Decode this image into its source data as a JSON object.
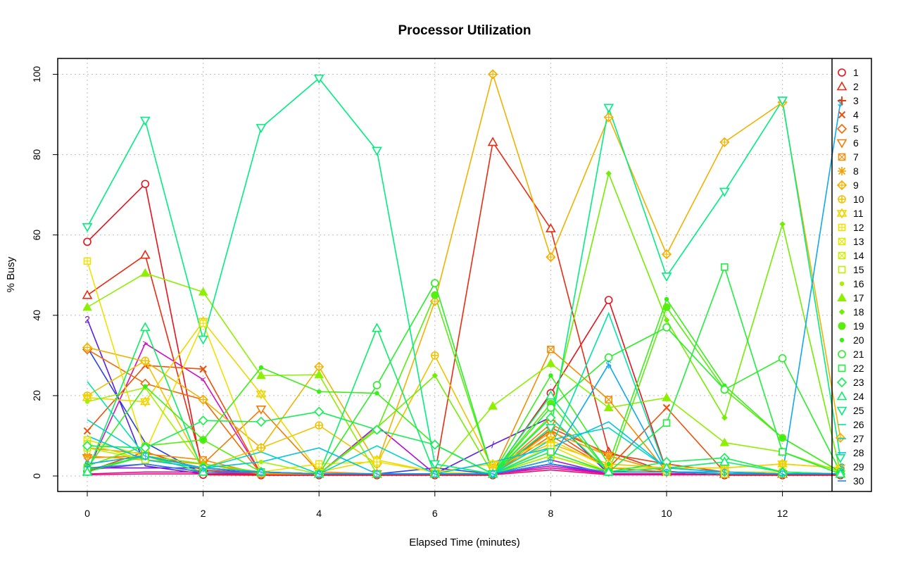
{
  "chart_data": {
    "type": "line",
    "title": "Processor Utilization",
    "xlabel": "Elapsed Time (minutes)",
    "ylabel": "% Busy",
    "xlim": [
      0,
      13
    ],
    "ylim": [
      0,
      100
    ],
    "x_ticks": [
      0,
      2,
      4,
      6,
      8,
      10,
      12
    ],
    "y_ticks": [
      0,
      20,
      40,
      60,
      80,
      100
    ],
    "grid": true,
    "legend_position": "right",
    "x": [
      0,
      1,
      2,
      3,
      4,
      5,
      6,
      7,
      8,
      9,
      10,
      11,
      12,
      13
    ],
    "series": [
      {
        "name": "1",
        "color": "#e8111b",
        "marker": "circle",
        "values": [
          58.3,
          72.7,
          0.3,
          0.2,
          0.2,
          0.2,
          0.2,
          0.2,
          20.6,
          43.8,
          1.2,
          0.2,
          0.2,
          0.2
        ]
      },
      {
        "name": "2",
        "color": "#ec2a10",
        "marker": "triangle",
        "values": [
          45.0,
          55.0,
          2.0,
          1.0,
          0.5,
          0.5,
          0.5,
          83.1,
          61.6,
          6.0,
          1.0,
          0.5,
          0.5,
          0.5
        ]
      },
      {
        "name": "3",
        "color": "#ee3d0c",
        "marker": "plus",
        "values": [
          1.2,
          6.0,
          1.5,
          0.5,
          0.5,
          0.5,
          0.5,
          0.5,
          12.0,
          5.5,
          3.0,
          1.0,
          0.5,
          0.5
        ]
      },
      {
        "name": "4",
        "color": "#f04f0a",
        "marker": "x",
        "values": [
          11.2,
          27.5,
          26.6,
          0.5,
          0.5,
          0.5,
          0.5,
          0.5,
          11.5,
          2.0,
          17.0,
          1.0,
          0.5,
          0.5
        ]
      },
      {
        "name": "5",
        "color": "#f26a08",
        "marker": "diamond",
        "values": [
          31.5,
          23.0,
          19.0,
          0.5,
          0.5,
          0.5,
          0.5,
          0.5,
          10.0,
          2.0,
          1.0,
          0.5,
          0.5,
          0.5
        ]
      },
      {
        "name": "6",
        "color": "#f47c06",
        "marker": "triangle-down",
        "values": [
          4.5,
          5.0,
          3.0,
          16.6,
          1.0,
          0.5,
          0.5,
          0.5,
          13.0,
          5.0,
          1.0,
          0.5,
          0.5,
          0.5
        ]
      },
      {
        "name": "7",
        "color": "#f58d04",
        "marker": "square-x",
        "values": [
          7.0,
          5.5,
          4.0,
          0.5,
          0.5,
          0.5,
          0.5,
          0.5,
          31.5,
          19.0,
          1.0,
          0.5,
          0.5,
          0.5
        ]
      },
      {
        "name": "8",
        "color": "#f5a002",
        "marker": "star",
        "values": [
          5.0,
          4.0,
          3.0,
          0.5,
          0.5,
          0.5,
          0.5,
          0.5,
          11.0,
          5.0,
          1.0,
          0.5,
          0.5,
          0.5
        ]
      },
      {
        "name": "9",
        "color": "#f2b100",
        "marker": "diamond-plus",
        "values": [
          32.0,
          28.5,
          19.0,
          7.0,
          27.2,
          3.0,
          43.5,
          100.0,
          54.5,
          89.3,
          55.2,
          83.1,
          93.0,
          9.5
        ]
      },
      {
        "name": "10",
        "color": "#f1c200",
        "marker": "circle-plus",
        "values": [
          20.0,
          28.7,
          2.0,
          7.0,
          12.6,
          3.0,
          30.0,
          2.0,
          8.0,
          3.0,
          2.0,
          2.0,
          3.0,
          2.0
        ]
      },
      {
        "name": "11",
        "color": "#efd600",
        "marker": "hexagram",
        "values": [
          19.5,
          18.5,
          38.5,
          20.4,
          1.0,
          4.0,
          1.0,
          3.0,
          9.0,
          2.0,
          2.0,
          2.0,
          3.0,
          2.0
        ]
      },
      {
        "name": "12",
        "color": "#f0e100",
        "marker": "square-plus",
        "values": [
          53.5,
          6.0,
          38.0,
          1.0,
          3.0,
          3.5,
          1.0,
          0.5,
          7.5,
          1.0,
          1.0,
          1.0,
          1.0,
          0.5
        ]
      },
      {
        "name": "13",
        "color": "#e2e800",
        "marker": "square-x",
        "values": [
          9.0,
          5.0,
          2.0,
          1.0,
          0.5,
          0.5,
          0.5,
          0.5,
          6.0,
          1.0,
          1.0,
          0.5,
          0.5,
          0.5
        ]
      },
      {
        "name": "14",
        "color": "#cfec00",
        "marker": "square-x",
        "values": [
          8.0,
          4.0,
          2.0,
          1.0,
          0.5,
          0.5,
          0.5,
          0.5,
          5.0,
          1.0,
          1.0,
          0.5,
          0.5,
          0.5
        ]
      },
      {
        "name": "15",
        "color": "#b9f000",
        "marker": "square",
        "values": [
          7.0,
          4.0,
          2.0,
          1.0,
          0.5,
          0.5,
          0.5,
          0.5,
          5.0,
          1.0,
          1.0,
          0.5,
          0.5,
          0.5
        ]
      },
      {
        "name": "16",
        "color": "#a6f000",
        "marker": "dot",
        "values": [
          18.5,
          22.0,
          2.0,
          3.5,
          0.5,
          0.5,
          0.5,
          0.5,
          5.0,
          1.0,
          1.0,
          0.5,
          0.5,
          0.5
        ]
      },
      {
        "name": "17",
        "color": "#8cf000",
        "marker": "triangle-filled",
        "values": [
          42.0,
          50.5,
          45.8,
          25.0,
          25.2,
          0.5,
          0.5,
          17.4,
          28.0,
          17.0,
          19.5,
          8.3,
          6.0,
          1.0
        ]
      },
      {
        "name": "18",
        "color": "#72ee00",
        "marker": "diamond-small",
        "values": [
          3.0,
          5.0,
          3.0,
          1.0,
          0.5,
          12.0,
          25.0,
          0.5,
          15.0,
          75.3,
          38.8,
          14.5,
          62.7,
          1.0
        ]
      },
      {
        "name": "19",
        "color": "#57ee10",
        "marker": "circle-filled",
        "values": [
          2.5,
          7.5,
          9.0,
          1.0,
          0.5,
          11.5,
          45.0,
          0.5,
          18.0,
          1.0,
          42.0,
          21.5,
          9.5,
          1.0
        ]
      },
      {
        "name": "20",
        "color": "#3aef18",
        "marker": "dot",
        "values": [
          2.0,
          22.3,
          9.0,
          27.0,
          21.0,
          20.6,
          7.8,
          0.5,
          25.0,
          3.0,
          44.0,
          22.5,
          9.5,
          1.0
        ]
      },
      {
        "name": "21",
        "color": "#28ef28",
        "marker": "circle",
        "values": [
          1.0,
          5.0,
          2.0,
          1.0,
          0.5,
          22.6,
          48.0,
          0.5,
          17.0,
          29.5,
          37.0,
          21.5,
          29.3,
          1.0
        ]
      },
      {
        "name": "22",
        "color": "#1eef3c",
        "marker": "square",
        "values": [
          1.5,
          5.0,
          1.0,
          1.0,
          0.5,
          0.5,
          0.5,
          0.5,
          6.0,
          1.0,
          13.2,
          52.0,
          6.0,
          0.5
        ]
      },
      {
        "name": "23",
        "color": "#14ef53",
        "marker": "diamond",
        "values": [
          7.5,
          7.0,
          13.8,
          13.5,
          16.0,
          11.5,
          7.8,
          0.5,
          14.5,
          1.0,
          3.5,
          4.5,
          1.0,
          0.5
        ]
      },
      {
        "name": "24",
        "color": "#0aee6a",
        "marker": "triangle",
        "values": [
          1.0,
          37.0,
          1.0,
          1.0,
          0.5,
          36.8,
          0.5,
          0.5,
          20.0,
          1.0,
          2.0,
          3.5,
          1.0,
          0.5
        ]
      },
      {
        "name": "25",
        "color": "#00ed80",
        "marker": "triangle-down",
        "values": [
          62.0,
          88.5,
          34.0,
          86.7,
          99.0,
          81.0,
          3.0,
          0.5,
          12.0,
          91.7,
          49.7,
          70.8,
          93.5,
          4.5
        ]
      },
      {
        "name": "26",
        "color": "#00e4a5",
        "marker": "none",
        "values": [
          23.5,
          5.0,
          2.0,
          1.0,
          0.5,
          0.5,
          0.5,
          0.5,
          7.0,
          40.5,
          1.0,
          0.5,
          0.5,
          0.5
        ]
      },
      {
        "name": "27",
        "color": "#00d6c6",
        "marker": "none",
        "values": [
          14.0,
          5.0,
          2.0,
          6.0,
          0.5,
          7.5,
          0.5,
          0.5,
          9.0,
          12.0,
          2.0,
          1.0,
          0.5,
          0.5
        ]
      },
      {
        "name": "28",
        "color": "#00c4e2",
        "marker": "none",
        "values": [
          10.0,
          4.0,
          2.0,
          3.5,
          7.0,
          0.5,
          0.5,
          3.5,
          7.0,
          13.5,
          2.0,
          1.0,
          0.5,
          0.5
        ]
      },
      {
        "name": "29",
        "color": "#10a8ee",
        "marker": "dollar",
        "values": [
          3.0,
          5.0,
          2.0,
          1.0,
          0.5,
          0.5,
          0.5,
          0.5,
          4.0,
          27.8,
          1.0,
          1.0,
          0.5,
          93.0
        ]
      },
      {
        "name": "30",
        "color": "#1e86ee",
        "marker": "none",
        "values": [
          2.0,
          3.0,
          1.0,
          1.0,
          0.5,
          0.5,
          0.5,
          0.5,
          3.0,
          1.0,
          1.0,
          0.5,
          0.5,
          0.5
        ]
      }
    ],
    "extra_series": [
      {
        "color": "#2a43e4",
        "values": [
          32.0,
          8.3,
          0.5,
          0.5,
          0.5,
          0.5,
          2.0,
          0.5,
          3.0,
          0.5,
          0.5,
          0.5,
          0.5,
          0.5
        ]
      },
      {
        "color": "#5a1ee6",
        "values": [
          39.0,
          2.5,
          0.5,
          0.5,
          0.5,
          0.5,
          0.5,
          7.8,
          14.6,
          0.5,
          0.5,
          0.5,
          0.5,
          0.5
        ]
      },
      {
        "color": "#7e10e0",
        "values": [
          2.0,
          2.0,
          2.0,
          0.5,
          0.5,
          0.5,
          0.5,
          0.5,
          3.0,
          0.5,
          0.5,
          0.5,
          0.5,
          0.5
        ]
      },
      {
        "color": "#b010d6",
        "values": [
          1.5,
          3.0,
          1.0,
          0.5,
          0.5,
          12.5,
          0.5,
          0.5,
          4.0,
          0.5,
          0.5,
          0.5,
          0.5,
          0.5
        ]
      },
      {
        "color": "#d00fc4",
        "values": [
          1.0,
          33.0,
          24.0,
          0.5,
          0.5,
          0.5,
          0.5,
          0.5,
          2.5,
          0.5,
          0.5,
          0.5,
          0.5,
          0.5
        ]
      },
      {
        "color": "#e40a9a",
        "values": [
          0.5,
          1.0,
          1.0,
          0.5,
          0.5,
          0.5,
          0.5,
          0.5,
          2.0,
          0.5,
          0.5,
          0.5,
          0.5,
          0.5
        ]
      },
      {
        "color": "#ee0a70",
        "values": [
          0.3,
          0.5,
          0.5,
          0.3,
          0.3,
          0.3,
          0.3,
          0.3,
          1.5,
          0.3,
          0.3,
          0.3,
          0.3,
          0.3
        ]
      }
    ],
    "annotations": [
      {
        "text": "2",
        "x": 0,
        "y": 39.0,
        "color": "#7e10e0"
      },
      {
        "text": ">",
        "x": 1,
        "y": 33.0,
        "color": "#d00fc4"
      },
      {
        "text": "<",
        "x": 2,
        "y": 24.0,
        "color": "#d00fc4"
      },
      {
        "text": "/",
        "x": 7,
        "y": 7.8,
        "color": "#5a1ee6"
      }
    ]
  }
}
